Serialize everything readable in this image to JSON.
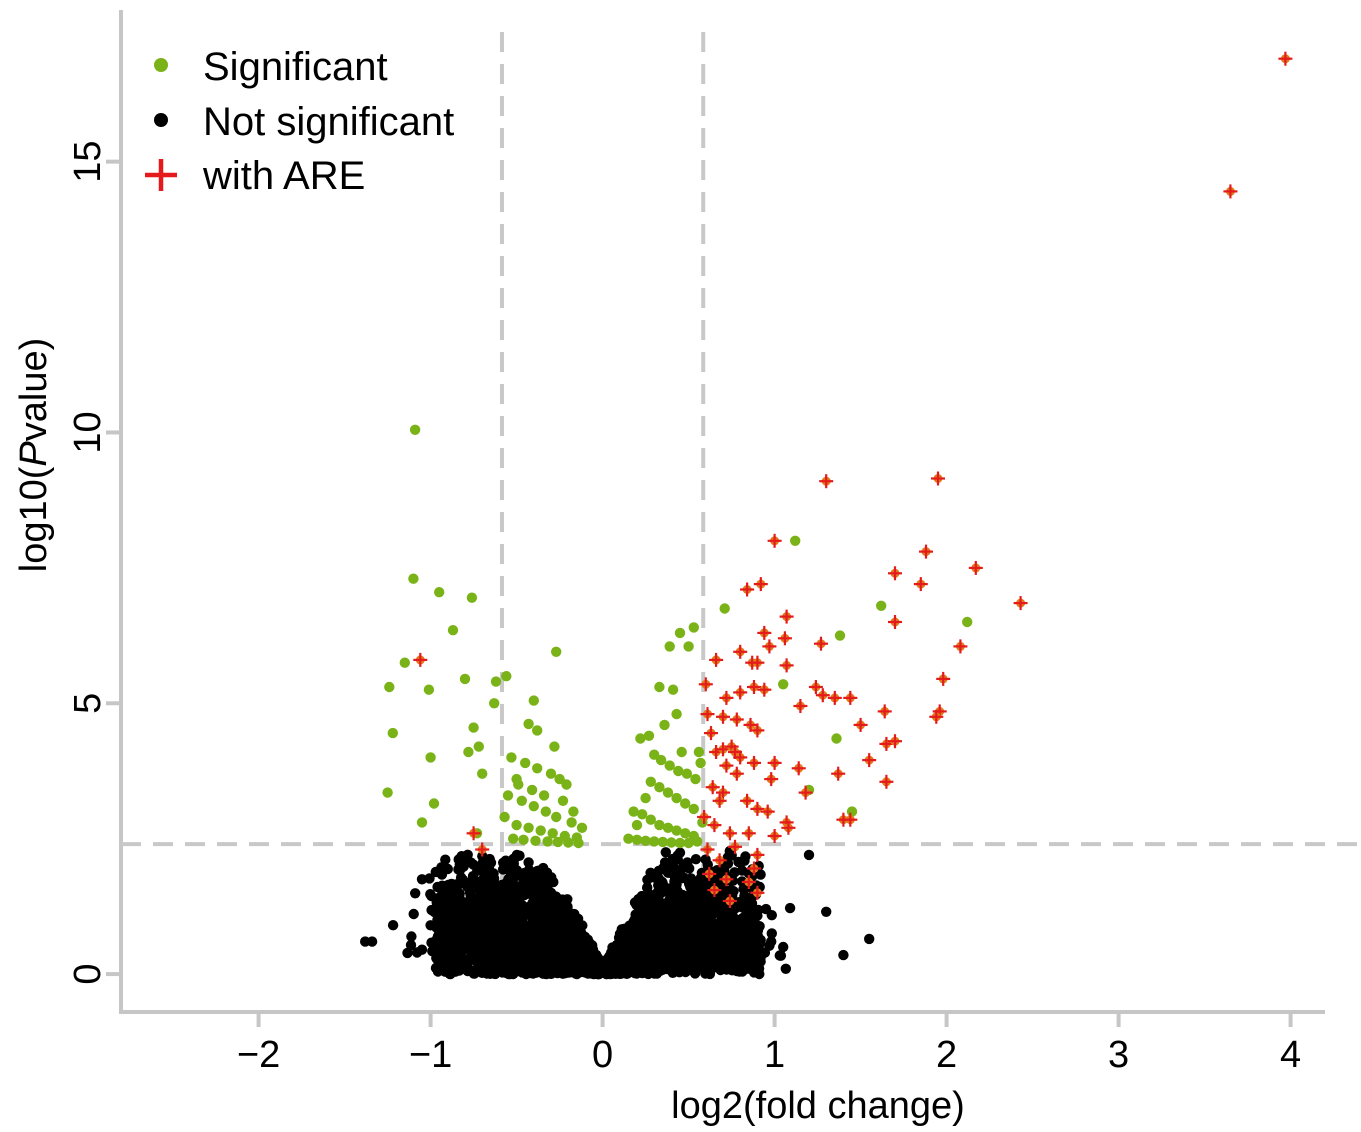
{
  "chart_data": {
    "type": "scatter",
    "xlabel": "log2(fold change)",
    "ylabel_prefix": "log10(",
    "ylabel_italic": "P",
    "ylabel_suffix": "value)",
    "xlim": [
      -2.8,
      4.2
    ],
    "ylim": [
      -0.7,
      17.8
    ],
    "x_ticks": [
      -2,
      -1,
      0,
      1,
      2,
      3,
      4
    ],
    "x_tick_labels": [
      "−2",
      "−1",
      "0",
      "1",
      "2",
      "3",
      "4"
    ],
    "y_ticks": [
      0,
      5,
      10,
      15
    ],
    "y_tick_labels": [
      "0",
      "5",
      "10",
      "15"
    ],
    "thresholds": {
      "x_low": -0.585,
      "x_high": 0.585,
      "y": 2.4
    },
    "grid": false,
    "legend_position": "top-left",
    "legend": [
      {
        "key": "significant",
        "label": "Significant",
        "color": "#7ab317",
        "marker": "dot"
      },
      {
        "key": "not_significant",
        "label": "Not significant",
        "color": "#000000",
        "marker": "dot"
      },
      {
        "key": "with_are",
        "label": "with ARE",
        "color": "#e41a1c",
        "marker": "plus"
      }
    ],
    "colors": {
      "significant": "#7ab317",
      "not_significant": "#000000",
      "are": "#e41a1c",
      "are_fill": "#e07b1a",
      "threshold": "#c8c8c8",
      "axis": "#c6c6c6"
    },
    "series": [
      {
        "name": "Significant",
        "points": [
          [
            -1.09,
            10.05
          ],
          [
            -1.1,
            7.3
          ],
          [
            -0.95,
            7.05
          ],
          [
            -0.76,
            6.95
          ],
          [
            -0.87,
            6.35
          ],
          [
            -1.15,
            5.75
          ],
          [
            -1.24,
            5.3
          ],
          [
            -1.01,
            5.25
          ],
          [
            -0.8,
            5.45
          ],
          [
            -1.22,
            4.45
          ],
          [
            -1.0,
            4.0
          ],
          [
            -1.25,
            3.35
          ],
          [
            -0.98,
            3.15
          ],
          [
            -1.05,
            2.8
          ],
          [
            -0.75,
            4.55
          ],
          [
            -0.72,
            4.2
          ],
          [
            -0.78,
            4.1
          ],
          [
            -0.7,
            3.7
          ],
          [
            -0.73,
            2.6
          ],
          [
            -0.63,
            5.0
          ],
          [
            -0.56,
            5.5
          ],
          [
            -0.62,
            5.4
          ],
          [
            -0.43,
            4.62
          ],
          [
            -0.38,
            4.5
          ],
          [
            -0.4,
            5.05
          ],
          [
            -0.27,
            5.95
          ],
          [
            -0.53,
            4.0
          ],
          [
            -0.45,
            3.9
          ],
          [
            -0.38,
            3.8
          ],
          [
            -0.3,
            3.7
          ],
          [
            -0.25,
            3.6
          ],
          [
            -0.21,
            3.5
          ],
          [
            -0.55,
            3.3
          ],
          [
            -0.47,
            3.2
          ],
          [
            -0.4,
            3.1
          ],
          [
            -0.33,
            3.0
          ],
          [
            -0.27,
            2.9
          ],
          [
            -0.18,
            2.8
          ],
          [
            -0.5,
            2.75
          ],
          [
            -0.43,
            2.7
          ],
          [
            -0.36,
            2.65
          ],
          [
            -0.29,
            2.6
          ],
          [
            -0.22,
            2.55
          ],
          [
            -0.15,
            2.52
          ],
          [
            -0.52,
            2.5
          ],
          [
            -0.46,
            2.48
          ],
          [
            -0.39,
            2.46
          ],
          [
            -0.32,
            2.45
          ],
          [
            -0.26,
            2.44
          ],
          [
            -0.2,
            2.43
          ],
          [
            -0.14,
            2.42
          ],
          [
            -0.57,
            2.9
          ],
          [
            -0.49,
            3.5
          ],
          [
            -0.41,
            3.4
          ],
          [
            -0.34,
            3.3
          ],
          [
            -0.23,
            3.2
          ],
          [
            -0.17,
            3.0
          ],
          [
            -0.12,
            2.7
          ],
          [
            -0.5,
            3.6
          ],
          [
            -0.28,
            4.2
          ],
          [
            0.22,
            4.35
          ],
          [
            0.27,
            4.4
          ],
          [
            0.33,
            5.3
          ],
          [
            0.41,
            5.25
          ],
          [
            0.39,
            6.05
          ],
          [
            0.45,
            6.3
          ],
          [
            0.53,
            6.4
          ],
          [
            0.5,
            6.05
          ],
          [
            0.71,
            6.75
          ],
          [
            1.12,
            8.0
          ],
          [
            1.62,
            6.8
          ],
          [
            1.38,
            6.25
          ],
          [
            2.12,
            6.5
          ],
          [
            1.05,
            5.35
          ],
          [
            1.36,
            4.35
          ],
          [
            1.45,
            3.0
          ],
          [
            1.2,
            3.4
          ],
          [
            0.3,
            4.05
          ],
          [
            0.34,
            3.95
          ],
          [
            0.39,
            3.85
          ],
          [
            0.44,
            3.75
          ],
          [
            0.49,
            3.7
          ],
          [
            0.54,
            3.6
          ],
          [
            0.28,
            3.55
          ],
          [
            0.33,
            3.45
          ],
          [
            0.38,
            3.35
          ],
          [
            0.43,
            3.25
          ],
          [
            0.48,
            3.15
          ],
          [
            0.53,
            3.05
          ],
          [
            0.18,
            3.0
          ],
          [
            0.23,
            2.95
          ],
          [
            0.28,
            2.85
          ],
          [
            0.33,
            2.75
          ],
          [
            0.38,
            2.7
          ],
          [
            0.43,
            2.65
          ],
          [
            0.48,
            2.6
          ],
          [
            0.53,
            2.55
          ],
          [
            0.15,
            2.5
          ],
          [
            0.2,
            2.48
          ],
          [
            0.25,
            2.46
          ],
          [
            0.3,
            2.45
          ],
          [
            0.35,
            2.44
          ],
          [
            0.4,
            2.43
          ],
          [
            0.45,
            2.42
          ],
          [
            0.5,
            2.42
          ],
          [
            0.55,
            2.45
          ],
          [
            0.58,
            2.8
          ],
          [
            0.57,
            3.9
          ],
          [
            0.46,
            4.1
          ],
          [
            0.36,
            4.6
          ],
          [
            0.43,
            4.8
          ],
          [
            0.56,
            4.1
          ],
          [
            0.2,
            2.75
          ],
          [
            0.25,
            3.25
          ]
        ]
      },
      {
        "name": "Not significant",
        "generated": true,
        "count": 3200,
        "points": [
          [
            -1.38,
            0.6
          ],
          [
            -1.34,
            0.6
          ],
          [
            -1.05,
            0.45
          ],
          [
            1.4,
            0.35
          ],
          [
            1.55,
            0.65
          ],
          [
            1.3,
            1.15
          ],
          [
            1.2,
            2.2
          ],
          [
            -1.05,
            1.75
          ],
          [
            -0.95,
            1.9
          ],
          [
            -0.85,
            1.6
          ],
          [
            -0.92,
            1.35
          ],
          [
            0.95,
            1.2
          ],
          [
            1.05,
            0.5
          ],
          [
            0.98,
            0.6
          ],
          [
            -0.62,
            0.35
          ],
          [
            -0.7,
            0.8
          ],
          [
            0.85,
            0.4
          ],
          [
            -1.0,
            0.9
          ]
        ]
      },
      {
        "name": "with ARE",
        "points": [
          [
            3.97,
            16.9
          ],
          [
            3.65,
            14.45
          ],
          [
            1.3,
            9.1
          ],
          [
            1.95,
            9.15
          ],
          [
            1.0,
            8.0
          ],
          [
            1.88,
            7.8
          ],
          [
            2.17,
            7.5
          ],
          [
            1.7,
            7.4
          ],
          [
            1.85,
            7.2
          ],
          [
            0.84,
            7.1
          ],
          [
            0.92,
            7.2
          ],
          [
            2.43,
            6.85
          ],
          [
            1.07,
            6.6
          ],
          [
            1.7,
            6.5
          ],
          [
            0.94,
            6.3
          ],
          [
            1.06,
            6.2
          ],
          [
            1.27,
            6.1
          ],
          [
            0.97,
            6.05
          ],
          [
            2.08,
            6.05
          ],
          [
            0.8,
            5.95
          ],
          [
            0.66,
            5.8
          ],
          [
            0.87,
            5.75
          ],
          [
            0.9,
            5.75
          ],
          [
            1.07,
            5.7
          ],
          [
            -1.06,
            5.8
          ],
          [
            1.98,
            5.45
          ],
          [
            0.6,
            5.35
          ],
          [
            0.72,
            5.1
          ],
          [
            0.8,
            5.2
          ],
          [
            0.88,
            5.3
          ],
          [
            0.94,
            5.25
          ],
          [
            1.24,
            5.3
          ],
          [
            1.35,
            5.1
          ],
          [
            1.44,
            5.1
          ],
          [
            1.28,
            5.15
          ],
          [
            1.15,
            4.95
          ],
          [
            1.64,
            4.85
          ],
          [
            1.96,
            4.85
          ],
          [
            1.94,
            4.75
          ],
          [
            0.61,
            4.8
          ],
          [
            0.7,
            4.75
          ],
          [
            0.78,
            4.7
          ],
          [
            0.86,
            4.6
          ],
          [
            0.9,
            4.5
          ],
          [
            1.5,
            4.6
          ],
          [
            1.65,
            4.25
          ],
          [
            1.7,
            4.3
          ],
          [
            0.63,
            4.45
          ],
          [
            0.66,
            4.1
          ],
          [
            0.7,
            4.15
          ],
          [
            0.75,
            4.2
          ],
          [
            0.77,
            4.1
          ],
          [
            0.8,
            4.0
          ],
          [
            0.88,
            3.9
          ],
          [
            1.0,
            3.9
          ],
          [
            1.55,
            3.95
          ],
          [
            1.37,
            3.7
          ],
          [
            0.72,
            3.85
          ],
          [
            0.78,
            3.7
          ],
          [
            0.98,
            3.6
          ],
          [
            1.14,
            3.8
          ],
          [
            1.65,
            3.55
          ],
          [
            1.18,
            3.35
          ],
          [
            0.64,
            3.45
          ],
          [
            0.7,
            3.35
          ],
          [
            0.68,
            3.2
          ],
          [
            0.9,
            3.05
          ],
          [
            0.96,
            3.0
          ],
          [
            0.84,
            3.2
          ],
          [
            1.4,
            2.85
          ],
          [
            1.44,
            2.85
          ],
          [
            1.07,
            2.8
          ],
          [
            1.08,
            2.7
          ],
          [
            0.59,
            2.9
          ],
          [
            0.65,
            2.75
          ],
          [
            0.74,
            2.6
          ],
          [
            1.0,
            2.55
          ],
          [
            0.85,
            2.6
          ],
          [
            -0.75,
            2.6
          ],
          [
            -0.7,
            2.3
          ],
          [
            0.77,
            2.35
          ],
          [
            0.61,
            2.3
          ],
          [
            0.9,
            2.2
          ],
          [
            0.68,
            2.1
          ],
          [
            0.88,
            1.95
          ],
          [
            0.62,
            1.85
          ],
          [
            0.72,
            1.75
          ],
          [
            0.85,
            1.7
          ],
          [
            0.9,
            1.5
          ],
          [
            0.65,
            1.55
          ],
          [
            0.74,
            1.35
          ]
        ]
      }
    ]
  }
}
